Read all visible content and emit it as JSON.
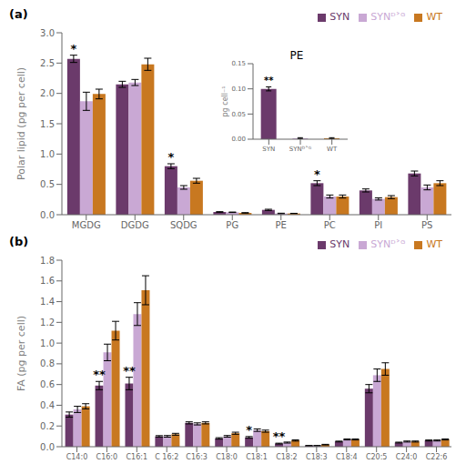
{
  "chart_data": [
    {
      "type": "bar",
      "title": "(a)",
      "categories": [
        "MGDG",
        "DGDG",
        "SQDG",
        "PG",
        "PE",
        "PC",
        "PI",
        "PS"
      ],
      "series": [
        {
          "name": "SYN",
          "color": "#6B3A6B",
          "values": [
            2.57,
            2.15,
            0.8,
            0.045,
            0.08,
            0.52,
            0.4,
            0.68
          ],
          "errors": [
            0.06,
            0.05,
            0.04,
            0.005,
            0.01,
            0.04,
            0.025,
            0.04
          ]
        },
        {
          "name": "SYNᴰ˃ᴳ",
          "color": "#C9A8D4",
          "values": [
            1.87,
            2.18,
            0.45,
            0.04,
            0.02,
            0.3,
            0.26,
            0.45
          ],
          "errors": [
            0.15,
            0.05,
            0.03,
            0.004,
            0.005,
            0.025,
            0.018,
            0.04
          ]
        },
        {
          "name": "WT",
          "color": "#C87820",
          "values": [
            1.99,
            2.48,
            0.56,
            0.03,
            0.02,
            0.3,
            0.29,
            0.52
          ],
          "errors": [
            0.08,
            0.1,
            0.04,
            0.004,
            0.003,
            0.025,
            0.025,
            0.04
          ]
        }
      ],
      "ylabel": "Polar lipid (pg per cell)",
      "ylim": [
        0,
        3.0
      ],
      "yticks": [
        {
          "value": 0,
          "label": "0.0"
        },
        0.5,
        {
          "value": 1.0,
          "label": "1.0"
        },
        1.5,
        {
          "value": 2.0,
          "label": "2.0"
        },
        2.5,
        {
          "value": 3.0,
          "label": "3.0"
        }
      ],
      "legend": "upper right",
      "annotations": [
        {
          "text": "*",
          "category": "MGDG",
          "series": "SYN"
        },
        {
          "text": "*",
          "category": "SQDG",
          "series": "SYN"
        },
        {
          "text": "*",
          "category": "PC",
          "series": "SYN"
        }
      ]
    },
    {
      "type": "bar",
      "title": "PE",
      "categories": [
        "SYN",
        "SYNᴰ˃ᴳ",
        "WT"
      ],
      "values": [
        0.1,
        0.002,
        0.002
      ],
      "errors": [
        0.004,
        0.001,
        0.001
      ],
      "colors": [
        "#6B3A6B",
        "#C9A8D4",
        "#C87820"
      ],
      "ylabel": "pg cell⁻¹",
      "ylim": [
        0,
        0.15
      ],
      "yticks": [
        {
          "value": 0,
          "label": "0.00"
        },
        0.05,
        {
          "value": 0.1,
          "label": "0.10"
        },
        0.15
      ],
      "annotations": [
        {
          "text": "**",
          "category": "SYN"
        }
      ]
    },
    {
      "type": "bar",
      "title": "(b)",
      "categories": [
        "C14:0",
        "C16:0",
        "C16:1",
        "C 16:2",
        "C16:3",
        "C18:0",
        "C18:1",
        "C18:2",
        "C18:3",
        "C18:4",
        "C20:5",
        "C24:0",
        "C22:6"
      ],
      "series": [
        {
          "name": "SYN",
          "color": "#6B3A6B",
          "values": [
            0.31,
            0.59,
            0.61,
            0.1,
            0.23,
            0.08,
            0.09,
            0.03,
            0.01,
            0.05,
            0.56,
            0.04,
            0.06
          ],
          "errors": [
            0.025,
            0.04,
            0.06,
            0.007,
            0.01,
            0.007,
            0.008,
            0.004,
            0.002,
            0.004,
            0.04,
            0.004,
            0.005
          ]
        },
        {
          "name": "SYNᴰ˃ᴳ",
          "color": "#C9A8D4",
          "values": [
            0.36,
            0.91,
            1.28,
            0.1,
            0.22,
            0.1,
            0.16,
            0.04,
            0.01,
            0.07,
            0.69,
            0.05,
            0.06
          ],
          "errors": [
            0.03,
            0.08,
            0.11,
            0.008,
            0.01,
            0.008,
            0.012,
            0.005,
            0.002,
            0.005,
            0.06,
            0.005,
            0.005
          ]
        },
        {
          "name": "WT",
          "color": "#C87820",
          "values": [
            0.39,
            1.12,
            1.51,
            0.12,
            0.23,
            0.13,
            0.15,
            0.06,
            0.02,
            0.07,
            0.75,
            0.05,
            0.07
          ],
          "errors": [
            0.025,
            0.09,
            0.14,
            0.009,
            0.01,
            0.01,
            0.01,
            0.006,
            0.003,
            0.005,
            0.06,
            0.005,
            0.005
          ]
        }
      ],
      "ylabel": "FA (pg per cell)",
      "ylim": [
        0,
        1.8
      ],
      "yticks": [
        {
          "value": 0,
          "label": "0.0"
        },
        0.2,
        0.4,
        0.6,
        0.8,
        {
          "value": 1.0,
          "label": "1.0"
        },
        1.2,
        1.4,
        1.6,
        1.8
      ],
      "legend": "upper right",
      "annotations": [
        {
          "text": "**",
          "category": "C16:0",
          "series": "SYN"
        },
        {
          "text": "**",
          "category": "C16:1",
          "series": "SYN"
        },
        {
          "text": "*",
          "category": "C18:1",
          "series": "SYN"
        },
        {
          "text": "**",
          "category": "C18:2",
          "series": "SYN"
        }
      ]
    }
  ]
}
